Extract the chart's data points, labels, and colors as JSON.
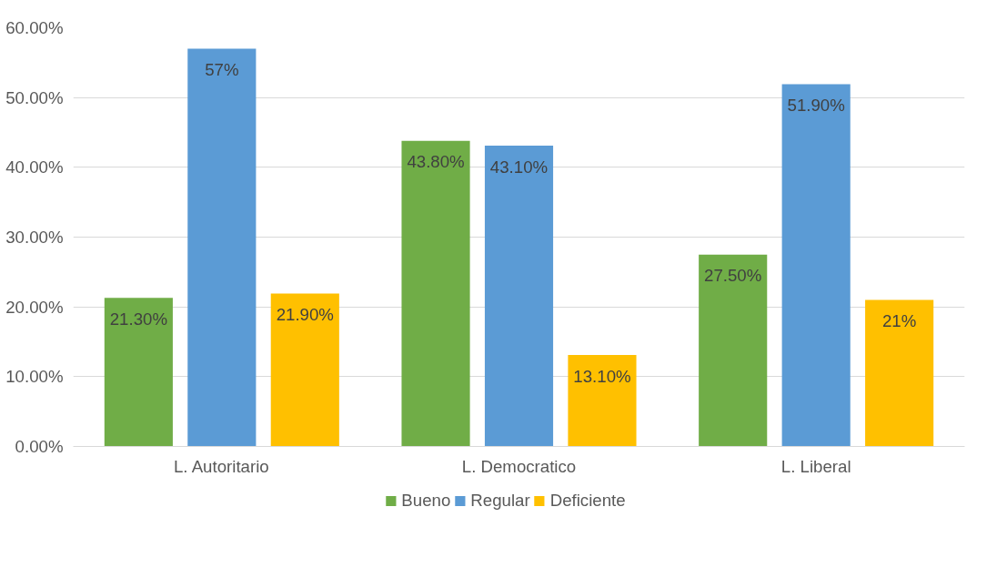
{
  "chart_data": {
    "type": "bar",
    "categories": [
      "L. Autoritario",
      "L. Democratico",
      "L. Liberal"
    ],
    "series": [
      {
        "name": "Bueno",
        "color": "#70ad47",
        "values": [
          21.3,
          43.8,
          27.5
        ],
        "value_labels": [
          "21.30%",
          "43.80%",
          "27.50%"
        ]
      },
      {
        "name": "Regular",
        "color": "#5b9bd5",
        "values": [
          57,
          43.1,
          51.9
        ],
        "value_labels": [
          "57%",
          "43.10%",
          "51.90%"
        ]
      },
      {
        "name": "Deficiente",
        "color": "#ffc000",
        "values": [
          21.9,
          13.1,
          21
        ],
        "value_labels": [
          "21.90%",
          "13.10%",
          "21%"
        ]
      }
    ],
    "ylim": [
      0,
      60
    ],
    "yticks": [
      {
        "value": 0,
        "label": "0.00%"
      },
      {
        "value": 10,
        "label": "10.00%"
      },
      {
        "value": 20,
        "label": "20.00%"
      },
      {
        "value": 30,
        "label": "30.00%"
      },
      {
        "value": 40,
        "label": "40.00%"
      },
      {
        "value": 50,
        "label": "50.00%"
      },
      {
        "value": 60,
        "label": "60.00%"
      }
    ],
    "grid": "y",
    "legend": "bottom"
  }
}
